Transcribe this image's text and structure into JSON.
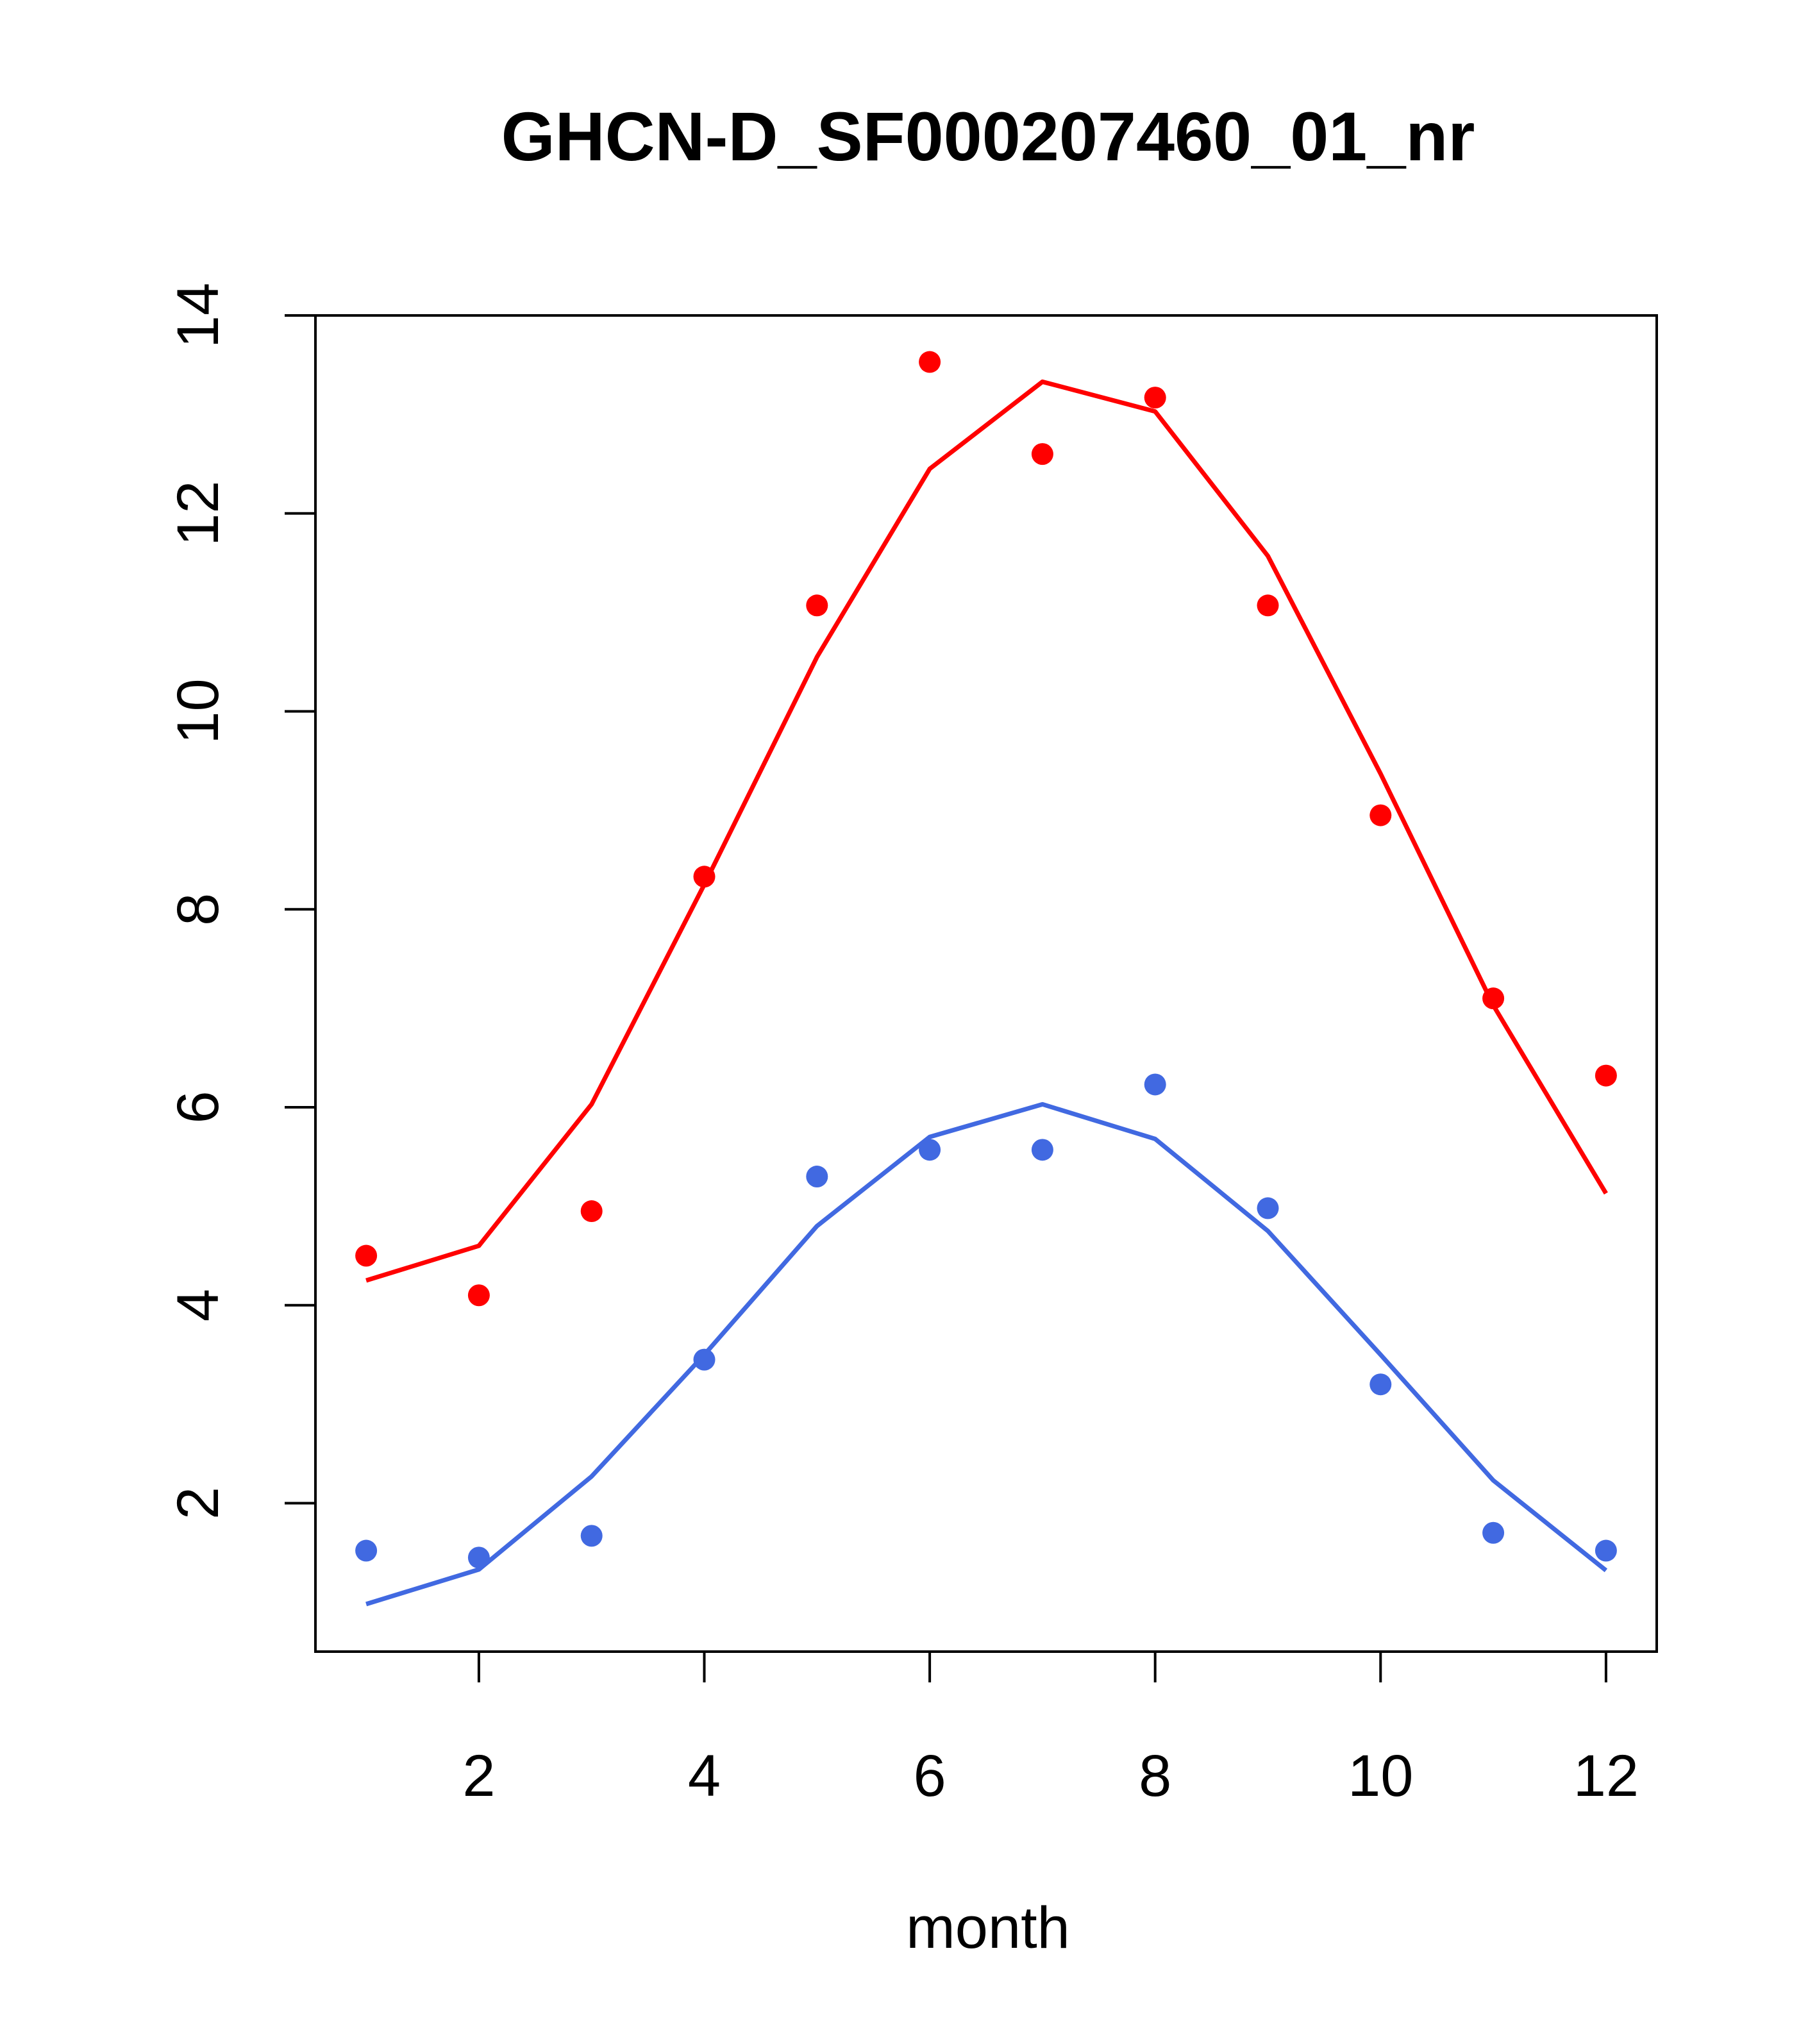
{
  "chart_data": {
    "type": "line",
    "title": "GHCN-D_SF000207460_01_nr",
    "xlabel": "month",
    "ylabel": "",
    "xlim": [
      0.55,
      12.45
    ],
    "ylim": [
      0.5,
      14.0
    ],
    "x_ticks": [
      2,
      4,
      6,
      8,
      10,
      12
    ],
    "y_ticks": [
      2,
      4,
      6,
      8,
      10,
      12,
      14
    ],
    "x": [
      1,
      2,
      3,
      4,
      5,
      6,
      7,
      8,
      9,
      10,
      11,
      12
    ],
    "series": [
      {
        "color": "#ff0000",
        "line": [
          4.25,
          4.6,
          6.03,
          8.25,
          10.55,
          12.45,
          13.33,
          13.03,
          11.57,
          9.37,
          7.03,
          5.13
        ],
        "points": [
          4.5,
          4.1,
          4.95,
          8.33,
          11.07,
          13.53,
          12.6,
          13.17,
          11.07,
          8.95,
          7.1,
          6.32
        ]
      },
      {
        "color": "#4169e1",
        "line": [
          0.98,
          1.33,
          2.27,
          3.5,
          4.8,
          5.7,
          6.03,
          5.68,
          4.75,
          3.5,
          2.23,
          1.32
        ],
        "points": [
          1.52,
          1.45,
          1.67,
          3.45,
          5.3,
          5.57,
          5.57,
          6.23,
          4.98,
          3.2,
          1.7,
          1.52
        ]
      }
    ]
  }
}
